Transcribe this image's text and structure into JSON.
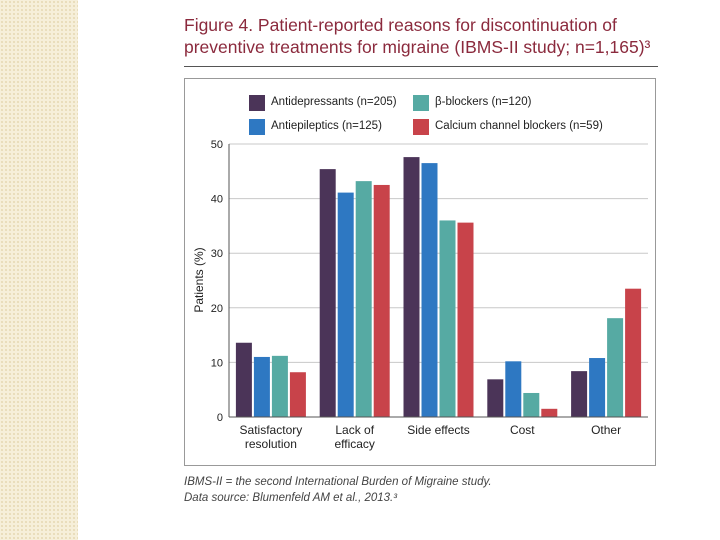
{
  "title": {
    "line1": "Figure 4. Patient-reported reasons for discontinuation of",
    "line2": "preventive treatments for migraine (IBMS-II study; n=1,165)³"
  },
  "footnote": {
    "line1": "IBMS-II = the second International Burden of Migraine study.",
    "line2": "Data source: Blumenfeld AM et al., 2013.³"
  },
  "chart_data": {
    "type": "bar",
    "title": "",
    "xlabel": "",
    "ylabel": "Patients (%)",
    "ylim": [
      0,
      50
    ],
    "yticks": [
      "0",
      "10",
      "20",
      "30",
      "40",
      "50"
    ],
    "grid": true,
    "legend_position": "top",
    "categories": [
      [
        "Satisfactory",
        "resolution"
      ],
      [
        "Lack of",
        "efficacy"
      ],
      [
        "Side effects"
      ],
      [
        "Cost"
      ],
      [
        "Other"
      ]
    ],
    "series": [
      {
        "name": "Antidepressants (n=205)",
        "color": "#4b3458",
        "values": [
          13.6,
          45.4,
          47.6,
          6.9,
          8.4
        ]
      },
      {
        "name": "Antiepileptics (n=125)",
        "color": "#2e78c2",
        "values": [
          11.0,
          41.1,
          46.5,
          10.2,
          10.8
        ]
      },
      {
        "name": "β-blockers (n=120)",
        "color": "#56aaa3",
        "values": [
          11.2,
          43.2,
          36.0,
          4.4,
          18.1
        ]
      },
      {
        "name": "Calcium channel blockers (n=59)",
        "color": "#c8434a",
        "values": [
          8.2,
          42.5,
          35.6,
          1.5,
          23.5
        ]
      }
    ]
  }
}
